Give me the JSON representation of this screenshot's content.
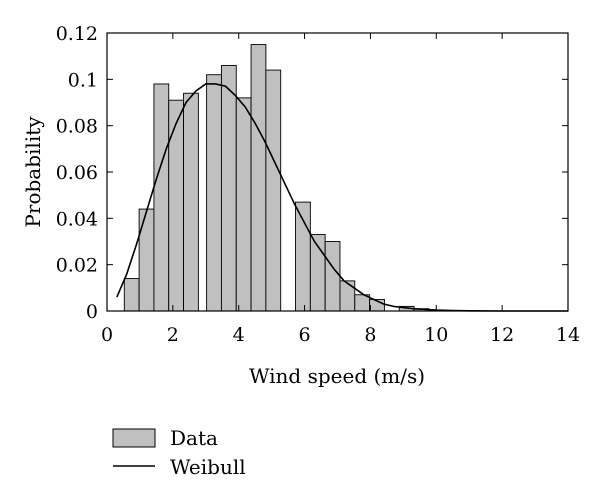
{
  "chart_data": {
    "type": "bar",
    "xlabel": "Wind speed (m/s)",
    "ylabel": "Probability",
    "xlim": [
      0,
      14
    ],
    "ylim": [
      0,
      0.12
    ],
    "grid": false,
    "legend_position": "bottom-left",
    "x_ticks": [
      "0",
      "2",
      "4",
      "6",
      "8",
      "10",
      "12",
      "14"
    ],
    "y_ticks": [
      "0",
      "0.02",
      "0.04",
      "0.06",
      "0.08",
      "0.1",
      "0.12"
    ],
    "bar_width": 0.45,
    "series": [
      {
        "name": "Data",
        "type": "bar",
        "color": "#c0c0c0",
        "x": [
          0.75,
          1.2,
          1.65,
          2.1,
          2.55,
          3.25,
          3.7,
          4.15,
          4.6,
          5.05,
          5.95,
          6.4,
          6.85,
          7.3,
          7.75,
          8.2,
          9.1,
          9.55
        ],
        "values": [
          0.014,
          0.044,
          0.098,
          0.091,
          0.094,
          0.102,
          0.106,
          0.092,
          0.115,
          0.104,
          0.047,
          0.033,
          0.03,
          0.013,
          0.007,
          0.005,
          0.002,
          0.001
        ]
      },
      {
        "name": "Weibull",
        "type": "line",
        "color": "#000000",
        "x": [
          0.3,
          0.6,
          0.9,
          1.2,
          1.5,
          1.8,
          2.1,
          2.4,
          2.7,
          3.0,
          3.3,
          3.6,
          3.9,
          4.2,
          4.5,
          4.8,
          5.1,
          5.4,
          5.7,
          6.0,
          6.3,
          6.6,
          6.9,
          7.2,
          7.5,
          7.8,
          8.1,
          8.4,
          8.7,
          9.0,
          9.3,
          9.6,
          10.0,
          10.5,
          11.0,
          12.0,
          13.0,
          14.0
        ],
        "values": [
          0.006,
          0.016,
          0.029,
          0.043,
          0.057,
          0.07,
          0.081,
          0.09,
          0.095,
          0.098,
          0.098,
          0.097,
          0.093,
          0.088,
          0.081,
          0.073,
          0.064,
          0.055,
          0.046,
          0.038,
          0.03,
          0.024,
          0.018,
          0.013,
          0.01,
          0.007,
          0.005,
          0.003,
          0.002,
          0.0015,
          0.001,
          0.0007,
          0.0004,
          0.0002,
          0.0001,
          0.0,
          0.0,
          0.0
        ]
      }
    ]
  }
}
